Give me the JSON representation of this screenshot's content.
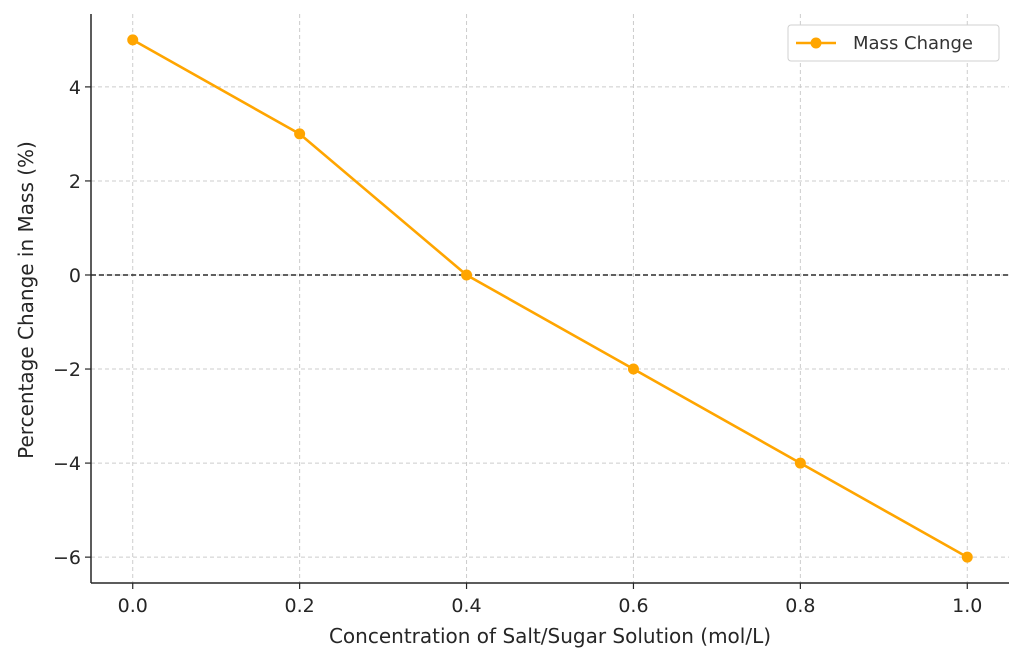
{
  "chart_data": {
    "type": "line",
    "title": "",
    "xlabel": "Concentration of Salt/Sugar Solution (mol/L)",
    "ylabel": "Percentage Change in Mass (%)",
    "xlim": [
      -0.05,
      1.05
    ],
    "ylim": [
      -6.55,
      5.55
    ],
    "x_ticks": [
      "0.0",
      "0.2",
      "0.4",
      "0.6",
      "0.8",
      "1.0"
    ],
    "x_tick_values": [
      0.0,
      0.2,
      0.4,
      0.6,
      0.8,
      1.0
    ],
    "y_ticks": [
      "−6",
      "−4",
      "−2",
      "0",
      "2",
      "4"
    ],
    "y_tick_values": [
      -6,
      -4,
      -2,
      0,
      2,
      4
    ],
    "grid": true,
    "reference_line": {
      "y": 0,
      "style": "dashed",
      "color": "#000000"
    },
    "legend_position": "top-right",
    "series": [
      {
        "name": "Mass Change",
        "color": "#FFA500",
        "marker": "circle",
        "x": [
          0.0,
          0.2,
          0.4,
          0.6,
          0.8,
          1.0
        ],
        "y": [
          5,
          3,
          0,
          -2,
          -4,
          -6
        ]
      }
    ]
  }
}
